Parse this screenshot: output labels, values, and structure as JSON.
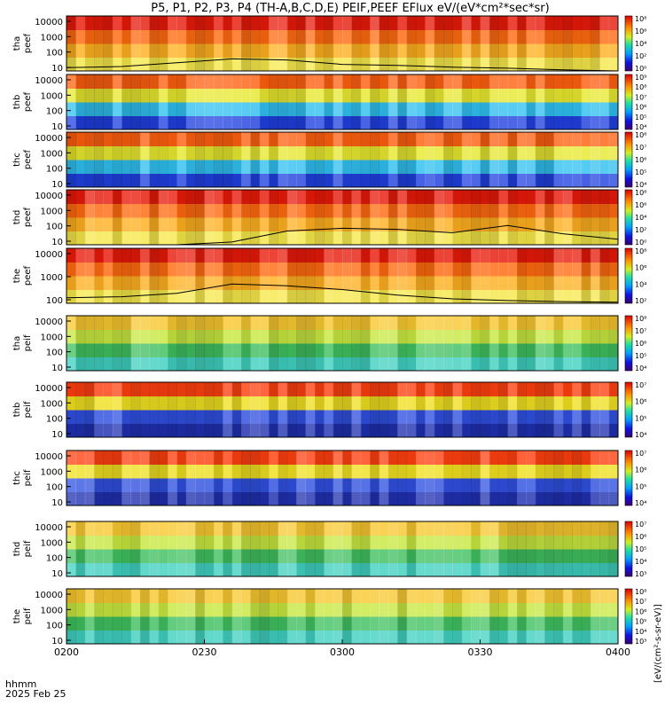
{
  "title": "P5, P1, P2, P3, P4 (TH-A,B,C,D,E) PEIF,PEEF EFlux eV/(eV*cm²*sec*sr)",
  "footer": {
    "time_label": "hhmm",
    "date_label": "2025 Feb 25",
    "x_ticks": [
      "0200",
      "0230",
      "0300",
      "0330",
      "0400"
    ]
  },
  "colorbar_label": "[eV/(cm²-s-sr-eV)]",
  "chart_data": [
    {
      "type": "heatmap",
      "name_label": "tha peef",
      "yticks": [
        "10",
        "100",
        "1000",
        "10000"
      ],
      "cbar_ticks": [
        "10⁰",
        "10²",
        "10⁴",
        "10⁶",
        "10⁸"
      ],
      "base_color": "#f0e030",
      "regime": "electron",
      "black_line": true,
      "line_level": [
        0.06,
        0.08,
        0.15,
        0.22,
        0.2,
        0.12,
        0.1,
        0.07,
        0.05,
        0.02,
        0.0
      ],
      "xlim": [
        0,
        120
      ]
    },
    {
      "type": "heatmap",
      "name_label": "thb peef",
      "yticks": [
        "10",
        "100",
        "1000",
        "10000"
      ],
      "cbar_ticks": [
        "10⁴",
        "10⁵",
        "10⁶",
        "10⁷",
        "10⁸",
        "10⁹"
      ],
      "base_color": "#e8e830",
      "regime": "solar-wind-electron",
      "black_line": false,
      "xlim": [
        0,
        120
      ]
    },
    {
      "type": "heatmap",
      "name_label": "thc peef",
      "yticks": [
        "10",
        "100",
        "1000",
        "10000"
      ],
      "cbar_ticks": [
        "10⁴",
        "10⁵",
        "10⁶",
        "10⁷",
        "10⁸"
      ],
      "base_color": "#e8e830",
      "regime": "solar-wind-electron",
      "black_line": false,
      "xlim": [
        0,
        120
      ]
    },
    {
      "type": "heatmap",
      "name_label": "thd peef",
      "yticks": [
        "10",
        "100",
        "1000",
        "10000"
      ],
      "cbar_ticks": [
        "10⁰",
        "10²",
        "10⁴",
        "10⁶",
        "10⁸"
      ],
      "base_color": "#f0e030",
      "regime": "electron",
      "black_line": true,
      "line_level": [
        0.0,
        0.0,
        0.0,
        0.05,
        0.25,
        0.3,
        0.28,
        0.22,
        0.35,
        0.2,
        0.1
      ],
      "xlim": [
        0,
        120
      ]
    },
    {
      "type": "heatmap",
      "name_label": "the peef",
      "yticks": [
        "100",
        "1000",
        "10000"
      ],
      "cbar_ticks": [
        "10²",
        "10⁴",
        "10⁶",
        "10⁸"
      ],
      "base_color": "#f0e030",
      "regime": "electron",
      "black_line": true,
      "line_level": [
        0.1,
        0.12,
        0.18,
        0.35,
        0.32,
        0.25,
        0.15,
        0.08,
        0.05,
        0.03,
        0.02
      ],
      "xlim": [
        0,
        120
      ]
    },
    {
      "type": "heatmap",
      "name_label": "tha peif",
      "yticks": [
        "10",
        "100",
        "1000",
        "10000"
      ],
      "cbar_ticks": [
        "10⁴",
        "10⁵",
        "10⁶",
        "10⁷",
        "10⁸"
      ],
      "base_color": "#30d0a0",
      "regime": "ion-sheath",
      "black_line": false,
      "xlim": [
        0,
        120
      ]
    },
    {
      "type": "heatmap",
      "name_label": "thb peif",
      "yticks": [
        "10",
        "100",
        "1000",
        "10000"
      ],
      "cbar_ticks": [
        "10⁴",
        "10⁵",
        "10⁶",
        "10⁷"
      ],
      "base_color": "#3040c0",
      "regime": "solar-wind-ion",
      "black_line": false,
      "xlim": [
        0,
        120
      ]
    },
    {
      "type": "heatmap",
      "name_label": "thc peif",
      "yticks": [
        "10",
        "100",
        "1000",
        "10000"
      ],
      "cbar_ticks": [
        "10⁴",
        "10⁵",
        "10⁶",
        "10⁷"
      ],
      "base_color": "#3040c0",
      "regime": "solar-wind-ion",
      "black_line": false,
      "xlim": [
        0,
        120
      ]
    },
    {
      "type": "heatmap",
      "name_label": "thd peif",
      "yticks": [
        "10",
        "100",
        "1000",
        "10000"
      ],
      "cbar_ticks": [
        "10³",
        "10⁴",
        "10⁵",
        "10⁶",
        "10⁷"
      ],
      "base_color": "#40c060",
      "regime": "ion-sheath",
      "black_line": false,
      "xlim": [
        0,
        120
      ]
    },
    {
      "type": "heatmap",
      "name_label": "the peif",
      "yticks": [
        "10",
        "100",
        "1000",
        "10000"
      ],
      "cbar_ticks": [
        "10³",
        "10⁴",
        "10⁵",
        "10⁶",
        "10⁷",
        "10⁸"
      ],
      "base_color": "#40c060",
      "regime": "ion-sheath",
      "black_line": false,
      "xlim": [
        0,
        120
      ]
    }
  ]
}
